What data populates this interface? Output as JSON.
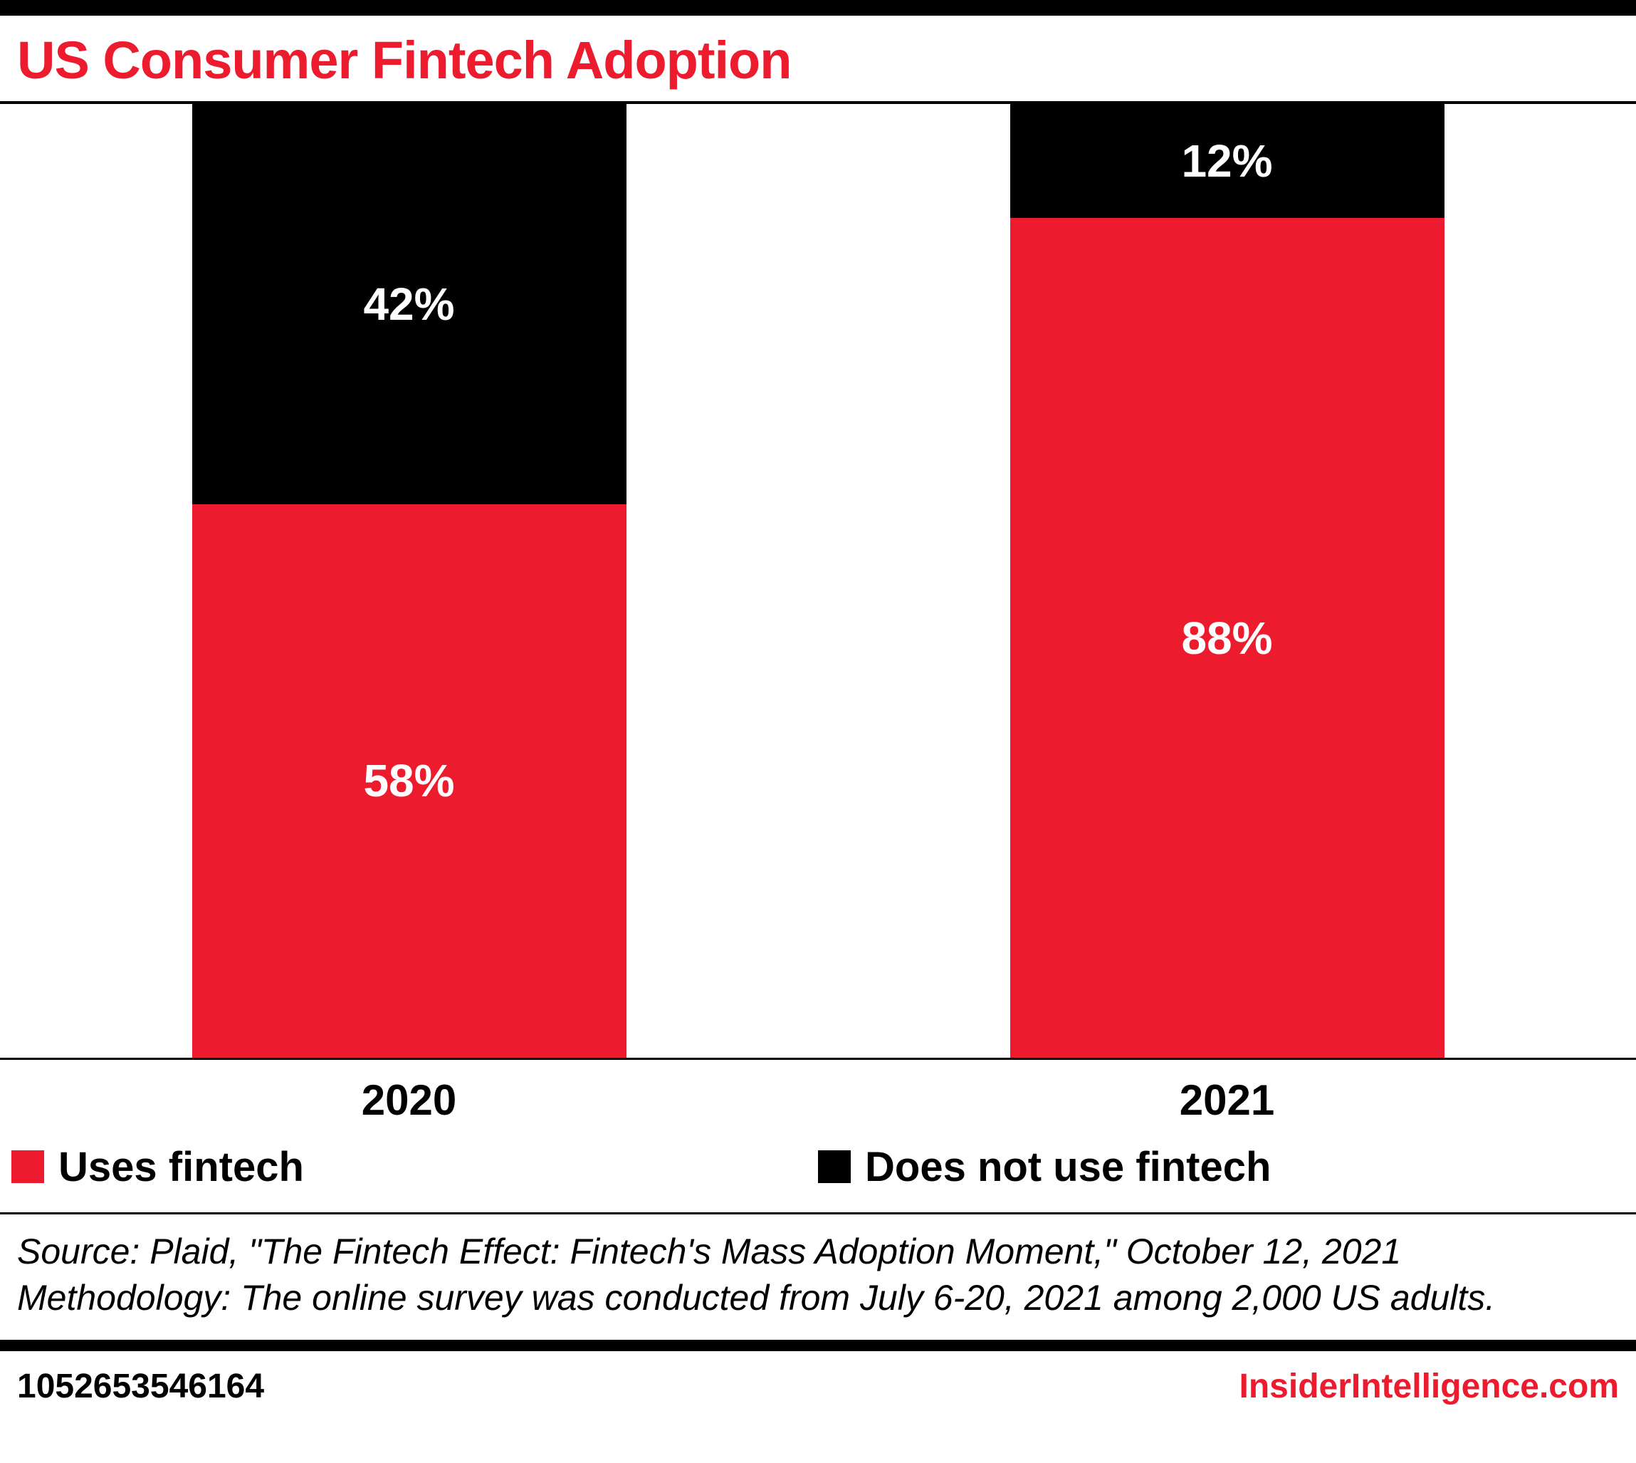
{
  "header": {
    "title": "US Consumer Fintech Adoption"
  },
  "colors": {
    "accent_red": "#ec1b2d",
    "black": "#000000",
    "value_label_white": "#ffffff"
  },
  "chart_data": {
    "type": "bar",
    "stacked": true,
    "orientation": "vertical",
    "unit": "%",
    "categories": [
      "2020",
      "2021"
    ],
    "series": [
      {
        "name": "Uses fintech",
        "color": "#ec1b2d",
        "values": [
          58,
          88
        ],
        "labels": [
          "58%",
          "88%"
        ]
      },
      {
        "name": "Does not use fintech",
        "color": "#000000",
        "values": [
          42,
          12
        ],
        "labels": [
          "42%",
          "12%"
        ]
      }
    ],
    "ylim": [
      0,
      100
    ],
    "grid": false,
    "legend_position": "bottom",
    "value_labels_shown": true
  },
  "legend": [
    {
      "label": "Uses fintech",
      "color": "#ec1b2d"
    },
    {
      "label": "Does not use fintech",
      "color": "#000000"
    }
  ],
  "source": {
    "line1": "Source: Plaid, \"The Fintech Effect: Fintech's Mass Adoption Moment,\" October 12, 2021",
    "line2": "Methodology: The online survey was conducted from July 6-20, 2021 among 2,000 US adults."
  },
  "footer": {
    "chart_id": "1052653546164",
    "brand": "InsiderIntelligence.com"
  }
}
